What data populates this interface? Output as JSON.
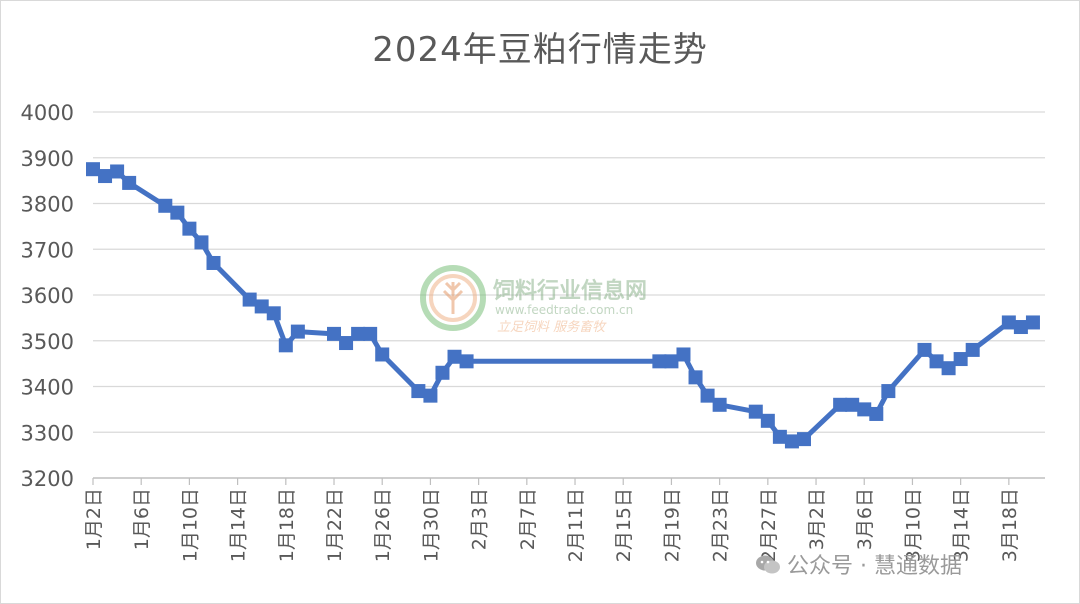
{
  "chart_data": {
    "type": "line",
    "title": "2024年豆粕行情走势",
    "ylim": [
      3200,
      4000
    ],
    "yticks": [
      3200,
      3300,
      3400,
      3500,
      3600,
      3700,
      3800,
      3900,
      4000
    ],
    "x_ticks": [
      "1月2日",
      "1月6日",
      "1月10日",
      "1月14日",
      "1月18日",
      "1月22日",
      "1月26日",
      "1月30日",
      "2月3日",
      "2月7日",
      "2月11日",
      "2月15日",
      "2月19日",
      "2月23日",
      "2月27日",
      "3月2日",
      "3月6日",
      "3月10日",
      "3月14日",
      "3月18日"
    ],
    "x_start": "2024-01-02",
    "x_end": "2024-03-21",
    "grid": true,
    "color": "#4472c4",
    "series": [
      {
        "x": [
          "2024-01-02",
          "2024-01-03",
          "2024-01-04",
          "2024-01-05",
          "2024-01-08",
          "2024-01-09",
          "2024-01-10",
          "2024-01-11",
          "2024-01-12",
          "2024-01-15",
          "2024-01-16",
          "2024-01-17",
          "2024-01-18",
          "2024-01-19",
          "2024-01-22",
          "2024-01-23",
          "2024-01-24",
          "2024-01-25",
          "2024-01-26",
          "2024-01-29",
          "2024-01-30",
          "2024-01-31",
          "2024-02-01",
          "2024-02-02",
          "2024-02-18",
          "2024-02-19",
          "2024-02-20",
          "2024-02-21",
          "2024-02-22",
          "2024-02-23",
          "2024-02-26",
          "2024-02-27",
          "2024-02-28",
          "2024-02-29",
          "2024-03-01",
          "2024-03-04",
          "2024-03-05",
          "2024-03-06",
          "2024-03-07",
          "2024-03-08",
          "2024-03-11",
          "2024-03-12",
          "2024-03-13",
          "2024-03-14",
          "2024-03-15",
          "2024-03-18",
          "2024-03-19",
          "2024-03-20"
        ],
        "values": [
          3875,
          3860,
          3870,
          3845,
          3795,
          3780,
          3745,
          3715,
          3670,
          3590,
          3575,
          3560,
          3490,
          3520,
          3515,
          3495,
          3515,
          3515,
          3470,
          3390,
          3380,
          3430,
          3465,
          3455,
          3455,
          3455,
          3470,
          3420,
          3380,
          3360,
          3345,
          3325,
          3290,
          3280,
          3285,
          3360,
          3360,
          3350,
          3340,
          3390,
          3480,
          3455,
          3440,
          3460,
          3480,
          3540,
          3530,
          3540
        ]
      }
    ]
  },
  "watermark": {
    "name": "饲料行业信息网",
    "url": "www.feedtrade.com.cn",
    "slogan": "立足饲料   服务畜牧"
  },
  "footer": {
    "text": "公众号 · 慧通数据"
  },
  "icons": {
    "watermark_logo": "wheat-logo-icon",
    "footer_logo": "wechat-icon"
  }
}
